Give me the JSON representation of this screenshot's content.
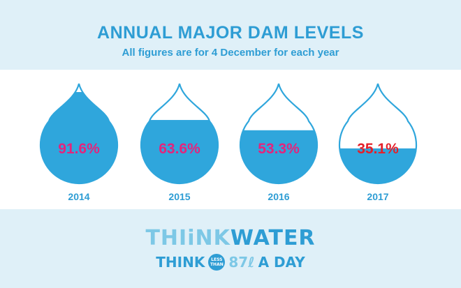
{
  "header": {
    "title": "ANNUAL MAJOR DAM LEVELS",
    "subtitle": "All figures are for 4 December for each year"
  },
  "chart_data": {
    "type": "bar",
    "title": "ANNUAL MAJOR DAM LEVELS",
    "subtitle": "All figures are for 4 December for each year",
    "categories": [
      "2014",
      "2015",
      "2016",
      "2017"
    ],
    "values": [
      91.6,
      63.6,
      53.3,
      35.1
    ],
    "value_labels": [
      "91.6%",
      "63.6%",
      "53.3%",
      "35.1%"
    ],
    "unit": "%",
    "ylim": [
      0,
      100
    ],
    "label_colors": [
      "#e4247c",
      "#e4247c",
      "#e4247c",
      "#e4202a"
    ]
  },
  "footer": {
    "logo_think": "THI",
    "logo_i": "i",
    "logo_nk": "NK",
    "logo_water": "WATER",
    "line2_think": "THINK",
    "badge_top": "LESS",
    "badge_bottom": "THAN",
    "line2_qty": "87ℓ",
    "line2_rest": "A DAY"
  },
  "colors": {
    "water": "#2fa6dc",
    "water_light": "#5bc0ea",
    "outline": "#2fa6dc",
    "title": "#2e9dd4"
  }
}
